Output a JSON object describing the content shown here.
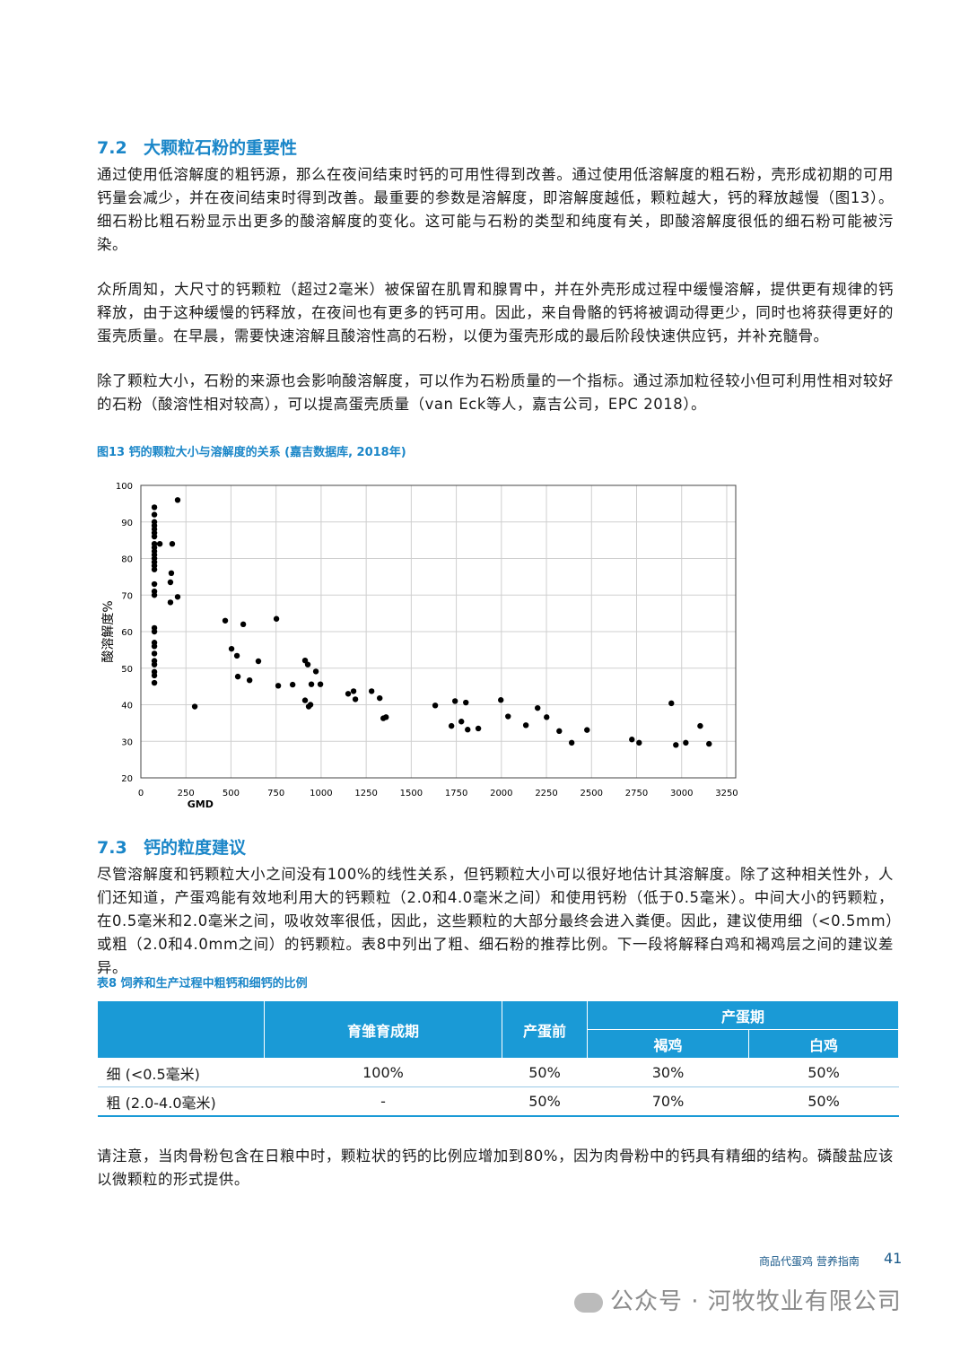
{
  "sections": [
    {
      "number": "7.2",
      "title": "大颗粒石粉的重要性",
      "paragraphs": [
        "通过使用低溶解度的粗钙源，那么在夜间结束时钙的可用性得到改善。通过使用低溶解度的粗石粉，壳形成初期的可用钙量会减少，并在夜间结束时得到改善。最重要的参数是溶解度，即溶解度越低，颗粒越大，钙的释放越慢（图13）。细石粉比粗石粉显示出更多的酸溶解度的变化。这可能与石粉的类型和纯度有关，即酸溶解度很低的细石粉可能被污染。",
        "众所周知，大尺寸的钙颗粒（超过2毫米）被保留在肌胃和腺胃中，并在外壳形成过程中缓慢溶解，提供更有规律的钙释放，由于这种缓慢的钙释放，在夜间也有更多的钙可用。因此，来自骨骼的钙将被调动得更少，同时也将获得更好的蛋壳质量。在早晨，需要快速溶解且酸溶性高的石粉，以便为蛋壳形成的最后阶段快速供应钙，并补充髓骨。",
        "除了颗粒大小，石粉的来源也会影响酸溶解度，可以作为石粉质量的一个指标。通过添加粒径较小但可利用性相对较好的石粉（酸溶性相对较高），可以提高蛋壳质量（van Eck等人，嘉吉公司，EPC 2018）。"
      ]
    },
    {
      "number": "7.3",
      "title": "钙的粒度建议",
      "paragraphs": [
        "尽管溶解度和钙颗粒大小之间没有100%的线性关系，但钙颗粒大小可以很好地估计其溶解度。除了这种相关性外，人们还知道，产蛋鸡能有效地利用大的钙颗粒（2.0和4.0毫米之间）和使用钙粉（低于0.5毫米）。中间大小的钙颗粒，在0.5毫米和2.0毫米之间，吸收效率很低，因此，这些颗粒的大部分最终会进入粪便。因此，建议使用细（<0.5mm）或粗（2.0和4.0mm之间）的钙颗粒。表8中列出了粗、细石粉的推荐比例。下一段将解释白鸡和褐鸡层之间的建议差异。"
      ]
    }
  ],
  "chart_data": {
    "type": "scatter",
    "title": "图13 钙的颗粒大小与溶解度的关系 (嘉吉数据库, 2018年)",
    "x_label": "GMD",
    "y_label": "酸溶解度%",
    "color": "#000000",
    "grid": true,
    "xlim": [
      0,
      3300
    ],
    "xticks": [
      0,
      250,
      500,
      750,
      1000,
      1250,
      1500,
      1750,
      2000,
      2250,
      2500,
      2750,
      3000,
      3250
    ],
    "ylim": [
      20,
      100
    ],
    "yticks": [
      20,
      30,
      40,
      50,
      60,
      70,
      80,
      90,
      100
    ],
    "x": [
      75,
      75,
      75,
      75,
      75,
      75,
      75,
      75,
      75,
      75,
      75,
      75,
      75,
      75,
      75,
      75,
      75,
      75,
      75,
      75,
      75,
      75,
      75,
      75,
      75,
      75,
      75,
      75,
      105,
      174,
      169,
      164,
      164,
      204,
      204,
      299,
      468,
      503,
      533,
      538,
      568,
      603,
      652,
      752,
      762,
      842,
      911,
      926,
      911,
      931,
      941,
      946,
      971,
      996,
      1150,
      1180,
      1190,
      1280,
      1325,
      1345,
      1360,
      1633,
      1723,
      1743,
      1778,
      1803,
      1813,
      1872,
      1997,
      2037,
      2136,
      2201,
      2251,
      2321,
      2390,
      2475,
      2724,
      2764,
      2943,
      2968,
      3023,
      3103,
      3152
    ],
    "values": [
      94,
      92,
      90,
      89,
      88,
      87,
      86,
      84,
      83,
      82,
      81,
      80,
      79,
      78,
      77,
      73,
      71,
      70,
      61,
      60,
      57,
      56,
      54,
      52,
      51,
      49,
      48,
      46,
      84,
      84,
      76,
      73.5,
      68,
      96,
      69.5,
      39.5,
      63,
      55.3,
      53.4,
      47.7,
      62,
      46.7,
      51.9,
      63.5,
      45.2,
      45.5,
      52.1,
      51,
      41.2,
      39.5,
      40,
      45.6,
      49.1,
      45.6,
      43,
      43.7,
      41.5,
      43.7,
      41.8,
      36.3,
      36.6,
      39.8,
      34.2,
      41,
      35.4,
      40.6,
      33.2,
      33.5,
      41.3,
      36.8,
      34.4,
      39.1,
      36.6,
      32.8,
      29.6,
      33.1,
      30.5,
      29.6,
      40.4,
      29,
      29.6,
      34.2,
      29.3
    ]
  },
  "table": {
    "title": "表8 饲养和生产过程中粗钙和细钙的比例",
    "header": [
      "育雏育成期",
      "产蛋前",
      "产蛋期"
    ],
    "subheader": [
      "褐鸡",
      "白鸡"
    ],
    "rows": [
      [
        "细 (<0.5毫米)",
        "100%",
        "50%",
        "30%",
        "50%"
      ],
      [
        "粗 (2.0-4.0毫米)",
        "-",
        "50%",
        "70%",
        "50%"
      ]
    ]
  },
  "note": "请注意，当肉骨粉包含在日粮中时，颗粒状的钙的比例应增加到80%，因为肉骨粉中的钙具有精细的结构。磷酸盐应该以微颗粒的形式提供。",
  "footer": {
    "title": "商品代蛋鸡 营养指南",
    "page": "41",
    "watermark": "公众号 · 河牧牧业有限公司"
  }
}
